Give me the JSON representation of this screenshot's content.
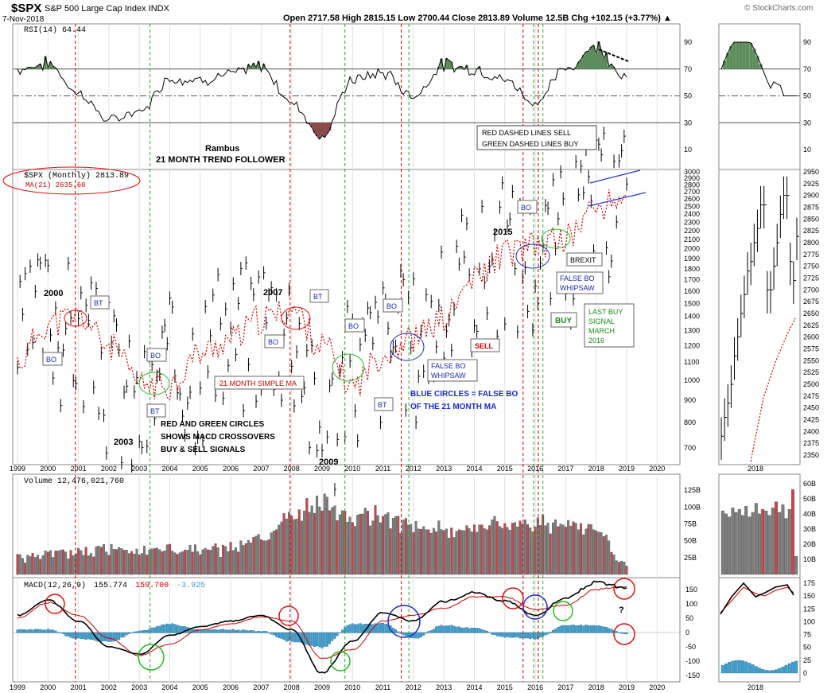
{
  "header": {
    "symbol": "$SPX",
    "name": "S&P 500 Large Cap Index INDX",
    "date": "7-Nov-2018",
    "ohlc": "Open 2717.58  High 2815.15  Low 2700.44  Close 2813.89  Volume 12.5B  Chg +102.15 (+3.77%) ▲",
    "watermark": "© StockCharts.com"
  },
  "colors": {
    "up_bar": "#c8464b",
    "down_bar": "#7d7d7d",
    "ma": "#cc0000",
    "rsi_fill": "#5b8c5a",
    "hist": "#3e9fd0",
    "sell_line": "#cc0000",
    "buy_line": "#22aa22"
  },
  "x_axis": {
    "years": [
      "1999",
      "2000",
      "2001",
      "2002",
      "2003",
      "2004",
      "2005",
      "2006",
      "2007",
      "2008",
      "2009",
      "2010",
      "2011",
      "2012",
      "2013",
      "2014",
      "2015",
      "2016",
      "2017",
      "2018",
      "2019",
      "2020"
    ],
    "inset_year": "2018"
  },
  "rsi_panel": {
    "label": "RSI(14) 64.44",
    "ticks": [
      "90",
      "70",
      "50",
      "30",
      "10"
    ],
    "inset_ticks": [
      "90",
      "70",
      "50",
      "30",
      "10"
    ]
  },
  "price_panel": {
    "legend_price": "$SPX (Monthly) 2813.89",
    "legend_ma": "MA(21) 2635.60",
    "ticks": [
      "3000",
      "2900",
      "2800",
      "2700",
      "2600",
      "2500",
      "2400",
      "2300",
      "2200",
      "2100",
      "2000",
      "1900",
      "1800",
      "1700",
      "1600",
      "1500",
      "1400",
      "1300",
      "1200",
      "1100",
      "1000",
      "900",
      "800",
      "700"
    ],
    "inset_ticks": [
      "2950",
      "2925",
      "2900",
      "2875",
      "2850",
      "2825",
      "2800",
      "2775",
      "2750",
      "2725",
      "2700",
      "2675",
      "2650",
      "2625",
      "2600",
      "2575",
      "2550",
      "2525",
      "2500",
      "2475",
      "2450",
      "2425",
      "2400",
      "2375",
      "2350"
    ]
  },
  "volume_panel": {
    "label": "Volume 12,476,021,760",
    "ticks": [
      "125B",
      "100B",
      "75B",
      "50B",
      "25B"
    ],
    "inset_ticks": [
      "60B",
      "50B",
      "40B",
      "30B",
      "20B",
      "10B"
    ]
  },
  "macd_panel": {
    "label_prefix": "MACD(12,26,9)",
    "value_macd": "155.774",
    "value_signal": "159.700",
    "value_hist": "-3.925",
    "ticks": [
      "150",
      "100",
      "50",
      "0",
      "-50",
      "-100",
      "-150"
    ],
    "inset_ticks": [
      "175",
      "150",
      "125",
      "100",
      "75",
      "50",
      "25",
      "0"
    ]
  },
  "annotations": {
    "rambus_1": "Rambus",
    "rambus_2": "21 MONTH TREND FOLLOWER",
    "legend_box_1": "RED DASHED LINES SELL",
    "legend_box_2": "GREEN DASHED LINES BUY",
    "y2000": "2000",
    "y2003": "2003",
    "y2007": "2007",
    "y2009": "2009",
    "y2015": "2015",
    "bo": "BO",
    "bt": "BT",
    "sma": "21 MONTH SIMPLE MA",
    "circles_1": "RED AND GREEN CIRCLES",
    "circles_2": "SHOWS MACD CROSSOVERS",
    "circles_3": "BUY & SELL SIGNALS",
    "false_bo_1": "FALSE BO",
    "false_bo_2": "WHIPSAW",
    "blue_1": "BLUE CIRCLES = FALSE BO",
    "blue_2": "OF THE 21 MONTH MA",
    "sell": "SELL",
    "buy": "BUY",
    "last_buy_1": "LAST BUY",
    "last_buy_2": "SIGNAL",
    "last_buy_3": "MARCH",
    "last_buy_4": "2016",
    "brexit": "BREXIT",
    "question": "?"
  },
  "chart_data": [
    {
      "type": "line",
      "title": "RSI(14)",
      "x": [
        "1999",
        "2000",
        "2001",
        "2002",
        "2003",
        "2004",
        "2005",
        "2006",
        "2007",
        "2008",
        "2009",
        "2010",
        "2011",
        "2012",
        "2013",
        "2014",
        "2015",
        "2016",
        "2017",
        "2018",
        "2019"
      ],
      "series": [
        {
          "name": "RSI(14)",
          "values": [
            70,
            74,
            52,
            32,
            38,
            63,
            62,
            66,
            72,
            45,
            20,
            62,
            67,
            50,
            73,
            70,
            62,
            45,
            70,
            87,
            64
          ]
        }
      ],
      "ylim": [
        0,
        100
      ]
    },
    {
      "type": "line",
      "title": "$SPX (Monthly)",
      "x": [
        "1999",
        "2000",
        "2001",
        "2002",
        "2003",
        "2004",
        "2005",
        "2006",
        "2007",
        "2008",
        "2009",
        "2010",
        "2011",
        "2012",
        "2013",
        "2014",
        "2015",
        "2016",
        "2017",
        "2018",
        "2019"
      ],
      "series": [
        {
          "name": "$SPX (Monthly)",
          "values": [
            1250,
            1480,
            1320,
            1100,
            860,
            1110,
            1190,
            1300,
            1470,
            1400,
            760,
            1110,
            1270,
            1300,
            1450,
            1850,
            2070,
            1970,
            2240,
            2650,
            2813.89
          ]
        },
        {
          "name": "MA(21)",
          "values": [
            1100,
            1350,
            1400,
            1200,
            980,
            980,
            1150,
            1240,
            1380,
            1450,
            1200,
            970,
            1150,
            1250,
            1380,
            1700,
            1960,
            2030,
            2120,
            2480,
            2635.6
          ]
        }
      ],
      "ylim": [
        650,
        3000
      ]
    },
    {
      "type": "bar",
      "title": "Volume",
      "x": [
        "1999",
        "2000",
        "2001",
        "2002",
        "2003",
        "2004",
        "2005",
        "2006",
        "2007",
        "2008",
        "2009",
        "2010",
        "2011",
        "2012",
        "2013",
        "2014",
        "2015",
        "2016",
        "2017",
        "2018",
        "2019"
      ],
      "values": [
        25,
        28,
        33,
        38,
        37,
        37,
        36,
        38,
        50,
        85,
        105,
        82,
        88,
        70,
        65,
        68,
        74,
        80,
        70,
        72,
        12.5
      ],
      "ylim": [
        0,
        140
      ]
    },
    {
      "type": "line",
      "title": "MACD(12,26,9)",
      "x": [
        "1999",
        "2000",
        "2001",
        "2002",
        "2003",
        "2004",
        "2005",
        "2006",
        "2007",
        "2008",
        "2009",
        "2010",
        "2011",
        "2012",
        "2013",
        "2014",
        "2015",
        "2016",
        "2017",
        "2018",
        "2019"
      ],
      "series": [
        {
          "name": "MACD",
          "values": [
            60,
            115,
            40,
            -50,
            -75,
            -10,
            20,
            40,
            60,
            10,
            -140,
            -30,
            70,
            40,
            110,
            140,
            110,
            60,
            120,
            175,
            155.774
          ]
        },
        {
          "name": "Signal",
          "values": [
            50,
            105,
            60,
            -20,
            -80,
            -40,
            10,
            30,
            55,
            40,
            -90,
            -60,
            40,
            60,
            85,
            125,
            125,
            80,
            95,
            150,
            159.7
          ]
        },
        {
          "name": "Histogram",
          "values": [
            10,
            10,
            -20,
            -30,
            5,
            30,
            10,
            10,
            5,
            -30,
            -50,
            30,
            30,
            -20,
            25,
            15,
            -15,
            -20,
            25,
            25,
            -3.925
          ]
        }
      ],
      "ylim": [
        -160,
        180
      ]
    }
  ]
}
